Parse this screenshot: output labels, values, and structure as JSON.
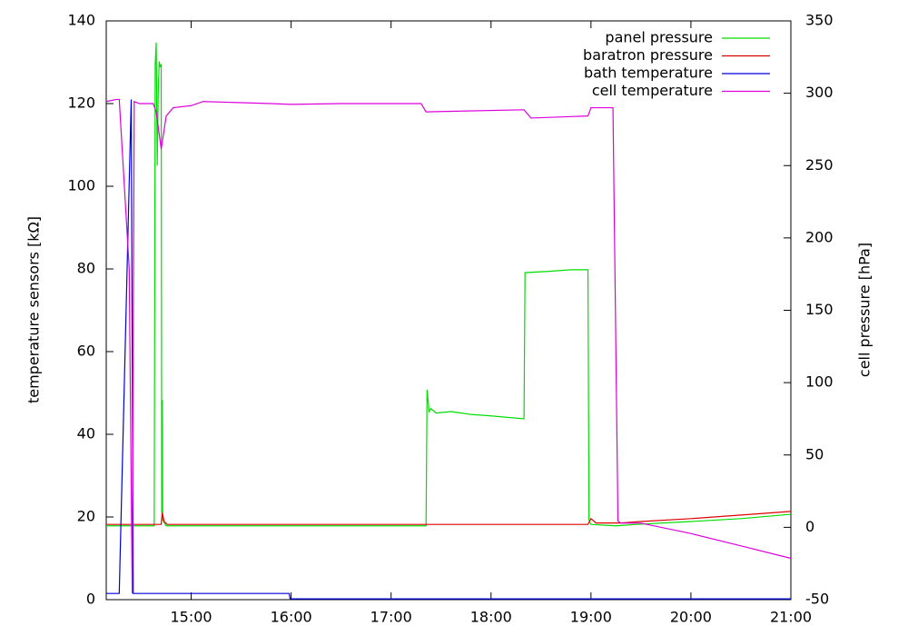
{
  "chart_data": {
    "type": "line",
    "ylabel": "temperature sensors [kΩ]",
    "y2label": "cell pressure [hPa]",
    "xlim": [
      14.15,
      21
    ],
    "xticks": [
      {
        "value": 15,
        "label": "15:00"
      },
      {
        "value": 16,
        "label": "16:00"
      },
      {
        "value": 17,
        "label": "17:00"
      },
      {
        "value": 18,
        "label": "18:00"
      },
      {
        "value": 19,
        "label": "19:00"
      },
      {
        "value": 20,
        "label": "20:00"
      },
      {
        "value": 21,
        "label": "21:00"
      }
    ],
    "ylim": [
      0,
      140
    ],
    "yticks": [
      0,
      20,
      40,
      60,
      80,
      100,
      120,
      140
    ],
    "y2lim": [
      -50,
      350
    ],
    "y2ticks": [
      -50,
      0,
      50,
      100,
      150,
      200,
      250,
      300,
      350
    ],
    "grid": false,
    "legend": "upper right",
    "series": [
      {
        "name": "panel pressure",
        "color": "#00dd00",
        "axis": "y2",
        "x": [
          14.15,
          14.63,
          14.64,
          14.65,
          14.66,
          14.67,
          14.68,
          14.69,
          14.7,
          14.705,
          14.71,
          14.715,
          14.75,
          17.35,
          17.36,
          17.38,
          17.4,
          17.45,
          17.6,
          17.8,
          18.0,
          18.33,
          18.34,
          18.6,
          18.8,
          18.97,
          18.98,
          19.0,
          19.25,
          19.45,
          20.0,
          20.5,
          21.0
        ],
        "values": [
          1,
          1,
          320,
          335,
          250,
          300,
          322,
          318,
          320,
          10,
          88,
          5,
          1,
          1,
          95,
          80,
          82,
          79,
          80,
          78,
          77,
          75,
          176,
          177,
          178,
          178,
          5,
          2,
          1,
          2,
          4,
          6,
          9
        ]
      },
      {
        "name": "baratron pressure",
        "color": "#dd0000",
        "axis": "y2",
        "x": [
          14.15,
          14.64,
          14.7,
          14.71,
          14.73,
          14.76,
          17.35,
          18.97,
          19.0,
          19.05,
          19.25,
          19.3,
          19.5,
          20.0,
          20.5,
          21.0
        ],
        "values": [
          2,
          2,
          2,
          10,
          4,
          2,
          2,
          2,
          6,
          3,
          3,
          3,
          4,
          6,
          8.5,
          11
        ]
      },
      {
        "name": "bath temperature",
        "color": "#0000dd",
        "axis": "y",
        "x": [
          14.15,
          14.28,
          14.4,
          14.42,
          15.98,
          15.99,
          21.0
        ],
        "values": [
          1.5,
          1.5,
          121,
          1.5,
          1.5,
          0.2,
          0.2
        ]
      },
      {
        "name": "cell temperature",
        "color": "#dd00dd",
        "axis": "y",
        "x": [
          14.15,
          14.25,
          14.28,
          14.38,
          14.41,
          14.43,
          14.48,
          14.62,
          14.65,
          14.7,
          14.75,
          14.82,
          15.0,
          15.12,
          15.8,
          16.0,
          16.5,
          17.3,
          17.35,
          18.33,
          18.4,
          18.97,
          19.0,
          19.22,
          19.27,
          19.3,
          19.5,
          20.0,
          20.5,
          21.0
        ],
        "values": [
          120.5,
          121,
          121,
          80,
          1.5,
          120.5,
          120,
          120,
          118,
          109,
          117,
          119,
          119.5,
          120.5,
          120,
          119.8,
          120,
          120,
          118,
          118.5,
          116.5,
          117,
          119,
          119,
          19,
          18.5,
          18.5,
          16,
          13,
          10
        ]
      }
    ]
  }
}
